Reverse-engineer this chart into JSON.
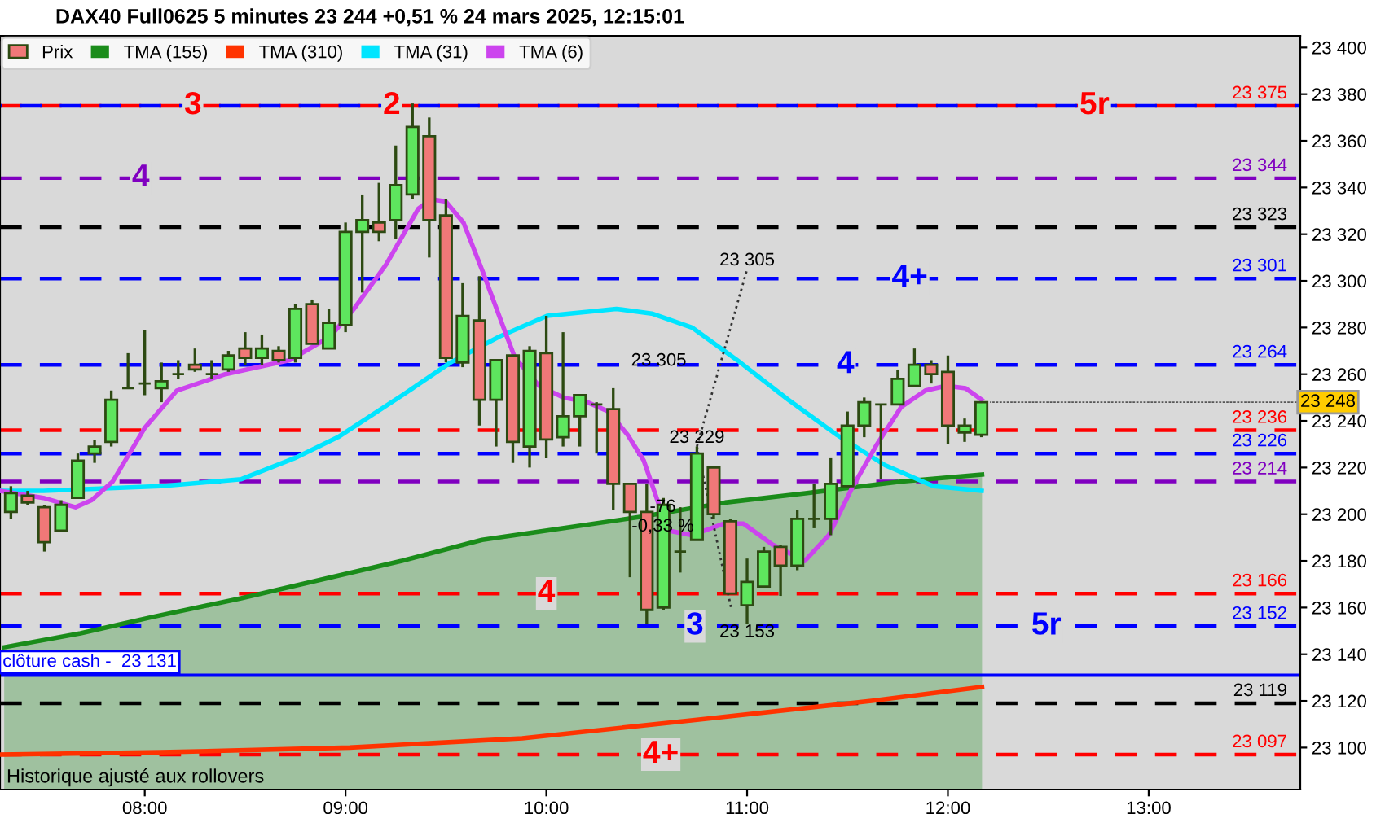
{
  "chart_data": {
    "type": "candlestick",
    "title": "DAX40 Full0625 5 minutes 23 244 +0,51 % 24 mars 2025, 12:15:01",
    "xlim": [
      7.279,
      13.755
    ],
    "ylim": [
      23082,
      23405
    ],
    "xticks": [
      {
        "value": 8,
        "label": "08:00"
      },
      {
        "value": 9,
        "label": "09:00"
      },
      {
        "value": 10,
        "label": "10:00"
      },
      {
        "value": 11,
        "label": "11:00"
      },
      {
        "value": 12,
        "label": "12:00"
      },
      {
        "value": 13,
        "label": "13:00"
      }
    ],
    "yticks": [
      {
        "value": 23100,
        "label": "23 100"
      },
      {
        "value": 23120,
        "label": "23 120"
      },
      {
        "value": 23140,
        "label": "23 140"
      },
      {
        "value": 23160,
        "label": "23 160"
      },
      {
        "value": 23180,
        "label": "23 180"
      },
      {
        "value": 23200,
        "label": "23 200"
      },
      {
        "value": 23220,
        "label": "23 220"
      },
      {
        "value": 23240,
        "label": "23 240"
      },
      {
        "value": 23260,
        "label": "23 260"
      },
      {
        "value": 23280,
        "label": "23 280"
      },
      {
        "value": 23300,
        "label": "23 300"
      },
      {
        "value": 23320,
        "label": "23 320"
      },
      {
        "value": 23340,
        "label": "23 340"
      },
      {
        "value": 23360,
        "label": "23 360"
      },
      {
        "value": 23380,
        "label": "23 380"
      },
      {
        "value": 23400,
        "label": "23 400"
      }
    ],
    "legend": "top left",
    "series": [
      {
        "name": "TMA (155)",
        "type": "area",
        "color": "#1a8c1a",
        "x": [
          7.3,
          7.68,
          8.04,
          8.48,
          8.88,
          9.28,
          9.68,
          10.08,
          10.48,
          10.89,
          11.29,
          11.77,
          12.17
        ],
        "values": [
          23143,
          23149,
          23156,
          23164,
          23172,
          23180,
          23189,
          23194,
          23199,
          23205,
          23209,
          23214,
          23217
        ]
      },
      {
        "name": "TMA (310)",
        "type": "line",
        "color": "#ff3300",
        "x": [
          7.28,
          8.08,
          9.02,
          9.88,
          10.76,
          11.62,
          12.17
        ],
        "values": [
          23097,
          23098,
          23100,
          23104,
          23112,
          23120,
          23126
        ]
      },
      {
        "name": "TMA (31)",
        "type": "line",
        "color": "#00e5ff",
        "x": [
          7.279,
          7.495,
          8.08,
          8.481,
          8.746,
          8.962,
          9.283,
          9.523,
          9.764,
          10.004,
          10.349,
          10.525,
          10.725,
          10.966,
          11.206,
          11.447,
          11.687,
          11.928,
          12.168
        ],
        "values": [
          23210,
          23210,
          23212,
          23215,
          23224,
          23233,
          23251,
          23265,
          23276,
          23285,
          23288,
          23286,
          23280,
          23265,
          23249,
          23234,
          23221,
          23212,
          23210
        ]
      },
      {
        "name": "TMA (6)",
        "type": "line",
        "color": "#cc44ee",
        "x": [
          7.279,
          7.495,
          7.655,
          7.735,
          7.84,
          8.0,
          8.16,
          8.401,
          8.721,
          8.922,
          9.042,
          9.202,
          9.363,
          9.427,
          9.499,
          9.587,
          9.683,
          9.804,
          9.844,
          9.964,
          10.084,
          10.204,
          10.309,
          10.405,
          10.485,
          10.549,
          10.605,
          10.725,
          10.886,
          10.982,
          11.126,
          11.287,
          11.407,
          11.527,
          11.647,
          11.768,
          11.888,
          11.992,
          12.088,
          12.168
        ],
        "values": [
          23210,
          23207,
          23203,
          23206,
          23214,
          23237,
          23253,
          23260,
          23266,
          23276,
          23288,
          23307,
          23331,
          23335,
          23334,
          23325,
          23304,
          23276,
          23267,
          23255,
          23250,
          23248,
          23244,
          23234,
          23223,
          23207,
          23193,
          23191,
          23196,
          23196,
          23187,
          23180,
          23191,
          23212,
          23230,
          23246,
          23253,
          23255,
          23254,
          23249
        ]
      },
      {
        "type": "line",
        "color": "#333333",
        "line_style": "dotted",
        "x": [
          10.75,
          11.0
        ],
        "values": [
          23229,
          23305
        ]
      },
      {
        "type": "line",
        "color": "#333333",
        "line_style": "dotted",
        "x": [
          10.75,
          10.92
        ],
        "values": [
          23229,
          23160
        ]
      },
      {
        "name": "Prix",
        "x": [
          7.3333,
          7.4167,
          7.5,
          7.5833,
          7.6667,
          7.75,
          7.8333,
          7.9167,
          8.0,
          8.0833,
          8.1667,
          8.25,
          8.3333,
          8.4167,
          8.5,
          8.5833,
          8.6667,
          8.75,
          8.8333,
          8.9167,
          9.0,
          9.0833,
          9.1667,
          9.25,
          9.3333,
          9.4167,
          9.5,
          9.5833,
          9.6667,
          9.75,
          9.8333,
          9.9167,
          10.0,
          10.0833,
          10.1667,
          10.25,
          10.3333,
          10.4167,
          10.5,
          10.5833,
          10.6667,
          10.75,
          10.8333,
          10.9167,
          11.0,
          11.0833,
          11.1667,
          11.25,
          11.3333,
          11.4167,
          11.5,
          11.5833,
          11.6667,
          11.75,
          11.8333,
          11.9167,
          12.0,
          12.0833,
          12.1667
        ],
        "ohlc": [
          [
            23201,
            23212,
            23198,
            23209
          ],
          [
            23208,
            23210,
            23204,
            23205
          ],
          [
            23203,
            23204,
            23184,
            23188
          ],
          [
            23193,
            23206,
            23193,
            23204
          ],
          [
            23207,
            23226,
            23207,
            23223
          ],
          [
            23226,
            23232,
            23222,
            23229
          ],
          [
            23231,
            23253,
            23229,
            23249
          ],
          [
            23254,
            23269,
            23254,
            23254
          ],
          [
            23256,
            23279,
            23251,
            23256
          ],
          [
            23254,
            23265,
            23248,
            23257
          ],
          [
            23260,
            23266,
            23258,
            23260
          ],
          [
            23264,
            23271,
            23261,
            23262
          ],
          [
            23260,
            23266,
            23258,
            23260
          ],
          [
            23262,
            23270,
            23261,
            23268
          ],
          [
            23271,
            23278,
            23264,
            23267
          ],
          [
            23267,
            23277,
            23264,
            23271
          ],
          [
            23270,
            23272,
            23265,
            23266
          ],
          [
            23267,
            23290,
            23265,
            23288
          ],
          [
            23290,
            23292,
            23273,
            23273
          ],
          [
            23271,
            23288,
            23271,
            23282
          ],
          [
            23281,
            23325,
            23278,
            23321
          ],
          [
            23321,
            23337,
            23295,
            23326
          ],
          [
            23325,
            23342,
            23317,
            23321
          ],
          [
            23326,
            23358,
            23318,
            23341
          ],
          [
            23337,
            23376,
            23335,
            23366
          ],
          [
            23362,
            23370,
            23310,
            23326
          ],
          [
            23328,
            23335,
            23265,
            23267
          ],
          [
            23265,
            23299,
            23263,
            23285
          ],
          [
            23283,
            23302,
            23238,
            23249
          ],
          [
            23249,
            23266,
            23229,
            23266
          ],
          [
            23268,
            23268,
            23222,
            23231
          ],
          [
            23229,
            23272,
            23220,
            23270
          ],
          [
            23269,
            23285,
            23224,
            23232
          ],
          [
            23233,
            23278,
            23229,
            23242
          ],
          [
            23242,
            23251,
            23229,
            23251
          ],
          [
            23247,
            23248,
            23226,
            23247
          ],
          [
            23245,
            23254,
            23202,
            23213
          ],
          [
            23213,
            23213,
            23173,
            23201
          ],
          [
            23201,
            23213,
            23153,
            23159
          ],
          [
            23160,
            23207,
            23159,
            23204
          ],
          [
            23184,
            23203,
            23175,
            23184
          ],
          [
            23189,
            23229,
            23189,
            23226
          ],
          [
            23220,
            23220,
            23198,
            23200
          ],
          [
            23197,
            23198,
            23166,
            23166
          ],
          [
            23161,
            23181,
            23153,
            23171
          ],
          [
            23169,
            23186,
            23169,
            23184
          ],
          [
            23186,
            23187,
            23165,
            23178
          ],
          [
            23178,
            23202,
            23176,
            23198
          ],
          [
            23198,
            23213,
            23194,
            23198
          ],
          [
            23198,
            23224,
            23191,
            23213
          ],
          [
            23212,
            23244,
            23212,
            23238
          ],
          [
            23238,
            23250,
            23233,
            23248
          ],
          [
            23247,
            23247,
            23215,
            23247
          ],
          [
            23247,
            23262,
            23247,
            23258
          ],
          [
            23255,
            23271,
            23255,
            23264
          ],
          [
            23264,
            23266,
            23256,
            23260
          ],
          [
            23261,
            23268,
            23230,
            23238
          ],
          [
            23235,
            23241,
            23231,
            23238
          ],
          [
            23234,
            23248,
            23233,
            23248
          ]
        ],
        "colors": [
          "#5ee65e",
          "#f07878",
          "#f07878",
          "#5ee65e",
          "#5ee65e",
          "#5ee65e",
          "#5ee65e",
          "#2d4a12",
          "#2d4a12",
          "#5ee65e",
          "#2d4a12",
          "#f07878",
          "#2d4a12",
          "#5ee65e",
          "#f07878",
          "#5ee65e",
          "#f07878",
          "#5ee65e",
          "#f07878",
          "#5ee65e",
          "#5ee65e",
          "#5ee65e",
          "#f07878",
          "#5ee65e",
          "#5ee65e",
          "#f07878",
          "#f07878",
          "#5ee65e",
          "#f07878",
          "#5ee65e",
          "#f07878",
          "#5ee65e",
          "#f07878",
          "#5ee65e",
          "#5ee65e",
          "#2d4a12",
          "#f07878",
          "#f07878",
          "#f07878",
          "#5ee65e",
          "#2d4a12",
          "#5ee65e",
          "#f07878",
          "#f07878",
          "#5ee65e",
          "#5ee65e",
          "#f07878",
          "#5ee65e",
          "#2d4a12",
          "#5ee65e",
          "#5ee65e",
          "#5ee65e",
          "#2d4a12",
          "#5ee65e",
          "#5ee65e",
          "#f07878",
          "#f07878",
          "#5ee65e",
          "#5ee65e"
        ]
      }
    ],
    "ref_lines": [
      {
        "axis": "y",
        "value": 23375,
        "label": "23 375",
        "color": "#ff0000",
        "line_style": "dashed"
      },
      {
        "axis": "y",
        "value": 23375,
        "color": "#0000ff",
        "line_style": "dashed"
      },
      {
        "axis": "y",
        "value": 23344,
        "label": "23 344",
        "color": "#8000c0",
        "line_style": "dashed"
      },
      {
        "axis": "y",
        "value": 23323,
        "label": "23 323",
        "color": "#000000",
        "line_style": "dashed"
      },
      {
        "axis": "y",
        "value": 23301,
        "label": "23 301",
        "color": "#0000ff",
        "line_style": "dashed"
      },
      {
        "axis": "y",
        "value": 23264,
        "label": "23 264",
        "color": "#0000ff",
        "line_style": "dashed"
      },
      {
        "axis": "y",
        "value": 23236,
        "label": "23 236",
        "color": "#ff0000",
        "line_style": "dashed"
      },
      {
        "axis": "y",
        "value": 23226,
        "label": "23 226",
        "color": "#0000ff",
        "line_style": "dashed"
      },
      {
        "axis": "y",
        "value": 23214,
        "label": "23 214",
        "color": "#8000c0",
        "line_style": "dashed"
      },
      {
        "axis": "y",
        "value": 23166,
        "label": "23 166",
        "color": "#ff0000",
        "line_style": "dashed"
      },
      {
        "axis": "y",
        "value": 23152,
        "label": "23 152",
        "color": "#0000ff",
        "line_style": "dashed"
      },
      {
        "axis": "y",
        "value": 23131,
        "label": "clôture cash -  23 131",
        "color": "#0000ff",
        "line_style": "solid"
      },
      {
        "axis": "y",
        "value": 23119,
        "label": "23 119",
        "color": "#000000",
        "line_style": "dashed"
      },
      {
        "axis": "y",
        "value": 23097,
        "label": "23 097",
        "color": "#ff0000",
        "line_style": "dashed"
      }
    ],
    "annotations": [
      {
        "text": "3",
        "x": 8.24,
        "y": 23375
      },
      {
        "text": "2",
        "x": 9.23,
        "y": 23375
      },
      {
        "text": "5r",
        "x": 12.73,
        "y": 23375
      },
      {
        "text": "4",
        "x": 7.98,
        "y": 23344
      },
      {
        "text": "4+",
        "x": 11.81,
        "y": 23301
      },
      {
        "text": "4",
        "x": 11.49,
        "y": 23264
      },
      {
        "text": "4",
        "x": 10.0,
        "y": 23166
      },
      {
        "text": "3",
        "x": 10.74,
        "y": 23152
      },
      {
        "text": "5r",
        "x": 12.49,
        "y": 23152
      },
      {
        "text": "4+",
        "x": 10.57,
        "y": 23097
      },
      {
        "text": "23 305",
        "x": 11.0,
        "y": 23305
      },
      {
        "text": "23 305",
        "x": 10.56,
        "y": 23262
      },
      {
        "text": "23 229",
        "x": 10.75,
        "y": 23229
      },
      {
        "text": "23 153",
        "x": 11.0,
        "y": 23153
      },
      {
        "text": "23 248",
        "x": 12.1667,
        "y": 23248
      },
      {
        "text": "-76\n-0,33 %",
        "x": 10.58,
        "y": 23191
      },
      "Historique ajusté aux rollovers"
    ]
  }
}
